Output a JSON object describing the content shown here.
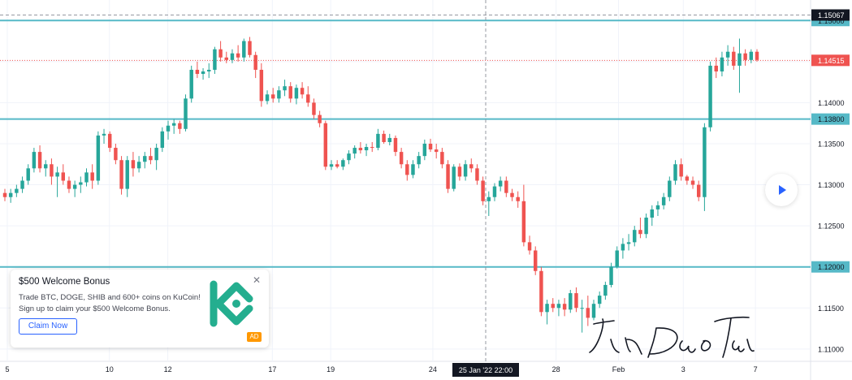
{
  "colors": {
    "up": "#26a69a",
    "down": "#ef5350",
    "level_line": "#56b9c7",
    "price_marker": "#ef5350",
    "top_marker": "#131722",
    "ad_accent": "#2962ff",
    "kucoin": "#24ae8f"
  },
  "chart_data": {
    "type": "candlestick",
    "y_range": [
      1.1085,
      1.1525
    ],
    "y_ticks": [
      "1.11000",
      "1.11500",
      "1.12000",
      "1.12500",
      "1.13000",
      "1.13500",
      "1.14000",
      "1.14500"
    ],
    "x_labels": [
      "5",
      "10",
      "12",
      "17",
      "19",
      "24",
      "28",
      "Feb",
      "3",
      "7"
    ],
    "crosshair_label": "25 Jan '22   22:00",
    "horizontal_levels": [
      1.15,
      1.138,
      1.12
    ],
    "level_labels": [
      "1.15000",
      "1.13800",
      "1.12000"
    ],
    "current_price": "1.14515",
    "top_marker": "1.15067",
    "candles": [
      [
        1.129,
        1.1295,
        1.128,
        1.1285
      ],
      [
        1.1285,
        1.1295,
        1.1278,
        1.129
      ],
      [
        1.129,
        1.13,
        1.1285,
        1.1295
      ],
      [
        1.1295,
        1.131,
        1.129,
        1.1305
      ],
      [
        1.1305,
        1.1325,
        1.13,
        1.132
      ],
      [
        1.132,
        1.1345,
        1.1315,
        1.134
      ],
      [
        1.134,
        1.1348,
        1.1315,
        1.132
      ],
      [
        1.132,
        1.133,
        1.131,
        1.1325
      ],
      [
        1.1325,
        1.1332,
        1.13,
        1.131
      ],
      [
        1.131,
        1.1322,
        1.1285,
        1.1315
      ],
      [
        1.1315,
        1.1325,
        1.13,
        1.1305
      ],
      [
        1.1305,
        1.131,
        1.129,
        1.1295
      ],
      [
        1.1295,
        1.1305,
        1.1285,
        1.13
      ],
      [
        1.13,
        1.131,
        1.129,
        1.1303
      ],
      [
        1.1303,
        1.132,
        1.1298,
        1.1315
      ],
      [
        1.1315,
        1.1325,
        1.1295,
        1.1305
      ],
      [
        1.1305,
        1.1365,
        1.13,
        1.136
      ],
      [
        1.136,
        1.1368,
        1.135,
        1.1362
      ],
      [
        1.1362,
        1.1365,
        1.134,
        1.1345
      ],
      [
        1.1345,
        1.135,
        1.1325,
        1.133
      ],
      [
        1.133,
        1.1335,
        1.1288,
        1.1295
      ],
      [
        1.1295,
        1.1335,
        1.1285,
        1.133
      ],
      [
        1.133,
        1.134,
        1.131,
        1.132
      ],
      [
        1.132,
        1.1335,
        1.1315,
        1.1328
      ],
      [
        1.1328,
        1.134,
        1.132,
        1.1335
      ],
      [
        1.1335,
        1.1345,
        1.1325,
        1.133
      ],
      [
        1.133,
        1.135,
        1.1318,
        1.1345
      ],
      [
        1.1345,
        1.137,
        1.134,
        1.1365
      ],
      [
        1.1365,
        1.1378,
        1.1355,
        1.1372
      ],
      [
        1.1372,
        1.138,
        1.1362,
        1.1375
      ],
      [
        1.1375,
        1.1378,
        1.1362,
        1.1368
      ],
      [
        1.1368,
        1.141,
        1.1365,
        1.1405
      ],
      [
        1.1405,
        1.1445,
        1.14,
        1.144
      ],
      [
        1.144,
        1.145,
        1.143,
        1.1435
      ],
      [
        1.1435,
        1.1442,
        1.1428,
        1.1438
      ],
      [
        1.1438,
        1.1448,
        1.143,
        1.144
      ],
      [
        1.144,
        1.1468,
        1.1435,
        1.1465
      ],
      [
        1.1465,
        1.1475,
        1.145,
        1.1455
      ],
      [
        1.1455,
        1.1462,
        1.1448,
        1.1452
      ],
      [
        1.1452,
        1.1465,
        1.1448,
        1.146
      ],
      [
        1.146,
        1.147,
        1.145,
        1.1455
      ],
      [
        1.1455,
        1.1478,
        1.145,
        1.1475
      ],
      [
        1.1475,
        1.148,
        1.1455,
        1.1458
      ],
      [
        1.1458,
        1.1462,
        1.143,
        1.144
      ],
      [
        1.144,
        1.1448,
        1.1395,
        1.1402
      ],
      [
        1.1402,
        1.1415,
        1.1398,
        1.141
      ],
      [
        1.141,
        1.1418,
        1.14,
        1.1405
      ],
      [
        1.1405,
        1.142,
        1.14,
        1.1415
      ],
      [
        1.1415,
        1.1428,
        1.1408,
        1.142
      ],
      [
        1.142,
        1.1425,
        1.14,
        1.1405
      ],
      [
        1.1405,
        1.1422,
        1.1398,
        1.1418
      ],
      [
        1.1418,
        1.1425,
        1.1405,
        1.141
      ],
      [
        1.141,
        1.142,
        1.1395,
        1.14
      ],
      [
        1.14,
        1.1405,
        1.138,
        1.1385
      ],
      [
        1.1385,
        1.139,
        1.137,
        1.1375
      ],
      [
        1.1375,
        1.1378,
        1.1318,
        1.1322
      ],
      [
        1.1322,
        1.133,
        1.1318,
        1.1325
      ],
      [
        1.1325,
        1.133,
        1.132,
        1.1322
      ],
      [
        1.1322,
        1.1332,
        1.1318,
        1.133
      ],
      [
        1.133,
        1.1342,
        1.1325,
        1.1338
      ],
      [
        1.1338,
        1.1348,
        1.1332,
        1.1345
      ],
      [
        1.1345,
        1.1352,
        1.1338,
        1.1342
      ],
      [
        1.1342,
        1.135,
        1.1335,
        1.1346
      ],
      [
        1.1346,
        1.1352,
        1.134,
        1.1345
      ],
      [
        1.1345,
        1.1368,
        1.1342,
        1.1362
      ],
      [
        1.1362,
        1.1366,
        1.135,
        1.1352
      ],
      [
        1.1352,
        1.1362,
        1.1348,
        1.1357
      ],
      [
        1.1357,
        1.136,
        1.1335,
        1.134
      ],
      [
        1.134,
        1.1345,
        1.132,
        1.1325
      ],
      [
        1.1325,
        1.133,
        1.1305,
        1.1312
      ],
      [
        1.1312,
        1.133,
        1.1308,
        1.1325
      ],
      [
        1.1325,
        1.134,
        1.132,
        1.1335
      ],
      [
        1.1335,
        1.1355,
        1.133,
        1.135
      ],
      [
        1.135,
        1.1356,
        1.134,
        1.1343
      ],
      [
        1.1343,
        1.135,
        1.1332,
        1.134
      ],
      [
        1.134,
        1.1345,
        1.132,
        1.1325
      ],
      [
        1.1325,
        1.133,
        1.129,
        1.1295
      ],
      [
        1.1295,
        1.1325,
        1.1292,
        1.1322
      ],
      [
        1.1322,
        1.1326,
        1.1305,
        1.131
      ],
      [
        1.131,
        1.133,
        1.1305,
        1.1325
      ],
      [
        1.1325,
        1.1332,
        1.1315,
        1.132
      ],
      [
        1.132,
        1.1325,
        1.13,
        1.1305
      ],
      [
        1.1305,
        1.131,
        1.1275,
        1.128
      ],
      [
        1.128,
        1.1292,
        1.1262,
        1.1285
      ],
      [
        1.1285,
        1.1302,
        1.128,
        1.1298
      ],
      [
        1.1298,
        1.131,
        1.1292,
        1.1305
      ],
      [
        1.1305,
        1.131,
        1.1285,
        1.129
      ],
      [
        1.129,
        1.1295,
        1.128,
        1.1285
      ],
      [
        1.1285,
        1.1292,
        1.1272,
        1.128
      ],
      [
        1.128,
        1.13,
        1.1225,
        1.123
      ],
      [
        1.123,
        1.1238,
        1.1215,
        1.122
      ],
      [
        1.122,
        1.1225,
        1.119,
        1.1195
      ],
      [
        1.1195,
        1.12,
        1.114,
        1.1145
      ],
      [
        1.1145,
        1.116,
        1.113,
        1.1155
      ],
      [
        1.1155,
        1.1162,
        1.1145,
        1.115
      ],
      [
        1.115,
        1.116,
        1.114,
        1.1155
      ],
      [
        1.1155,
        1.1162,
        1.114,
        1.1148
      ],
      [
        1.1148,
        1.1172,
        1.1144,
        1.1168
      ],
      [
        1.1168,
        1.1175,
        1.1145,
        1.115
      ],
      [
        1.115,
        1.116,
        1.112,
        1.115
      ],
      [
        1.115,
        1.1165,
        1.1128,
        1.1138
      ],
      [
        1.1138,
        1.116,
        1.1135,
        1.1155
      ],
      [
        1.1155,
        1.117,
        1.115,
        1.1165
      ],
      [
        1.1165,
        1.1182,
        1.116,
        1.1178
      ],
      [
        1.1178,
        1.1205,
        1.1175,
        1.12
      ],
      [
        1.12,
        1.1225,
        1.1198,
        1.122
      ],
      [
        1.122,
        1.1235,
        1.121,
        1.1228
      ],
      [
        1.1228,
        1.124,
        1.122,
        1.123
      ],
      [
        1.123,
        1.125,
        1.1225,
        1.1245
      ],
      [
        1.1245,
        1.126,
        1.1235,
        1.124
      ],
      [
        1.124,
        1.1265,
        1.1235,
        1.126
      ],
      [
        1.126,
        1.1275,
        1.125,
        1.127
      ],
      [
        1.127,
        1.128,
        1.1262,
        1.1275
      ],
      [
        1.1275,
        1.129,
        1.127,
        1.1285
      ],
      [
        1.1285,
        1.131,
        1.128,
        1.1305
      ],
      [
        1.1305,
        1.133,
        1.13,
        1.1325
      ],
      [
        1.1325,
        1.1332,
        1.1305,
        1.131
      ],
      [
        1.131,
        1.1312,
        1.13,
        1.1305
      ],
      [
        1.1305,
        1.131,
        1.1295,
        1.13
      ],
      [
        1.13,
        1.1305,
        1.128,
        1.1285
      ],
      [
        1.1285,
        1.1375,
        1.1268,
        1.137
      ],
      [
        1.137,
        1.145,
        1.1365,
        1.1445
      ],
      [
        1.1445,
        1.1455,
        1.143,
        1.1438
      ],
      [
        1.1438,
        1.1462,
        1.1432,
        1.1455
      ],
      [
        1.1455,
        1.147,
        1.1445,
        1.1462
      ],
      [
        1.1462,
        1.1468,
        1.144,
        1.1445
      ],
      [
        1.1445,
        1.1478,
        1.1412,
        1.146
      ],
      [
        1.146,
        1.1465,
        1.1445,
        1.1452
      ],
      [
        1.1452,
        1.1465,
        1.1448,
        1.1462
      ],
      [
        1.1462,
        1.1465,
        1.145,
        1.1452
      ]
    ]
  },
  "ad": {
    "title": "$500 Welcome Bonus",
    "line1": "Trade BTC, DOGE, SHIB and 600+ coins on KuCoin!",
    "line2": "Sign up to claim your $500 Welcome Bonus.",
    "button": "Claim Now",
    "close": "✕",
    "tag": "AD",
    "logo_icon": "kucoin-logo-icon"
  },
  "watermark": "JinDaoTai",
  "play_icon": "play-icon"
}
